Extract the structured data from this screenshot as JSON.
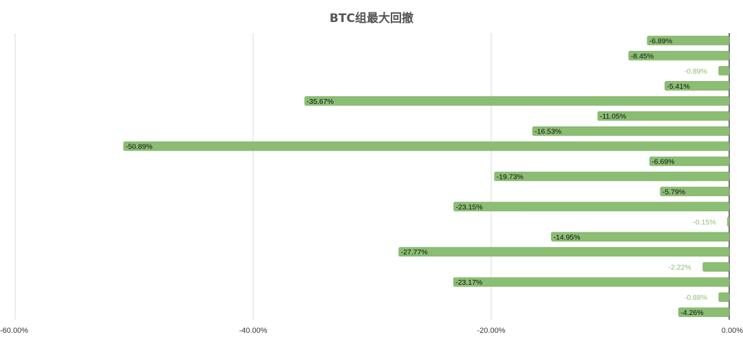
{
  "chart_data": {
    "type": "bar",
    "orientation": "horizontal",
    "title": "BTC组最大回撤",
    "xlabel": "",
    "ylabel": "",
    "xlim": [
      -60,
      0
    ],
    "x_ticks": [
      "-60.00%",
      "-40.00%",
      "-20.00%",
      "0.00%"
    ],
    "x_tick_values": [
      -60,
      -40,
      -20,
      0
    ],
    "grid": "vertical",
    "legend": "none",
    "series": [
      {
        "values": [
          -6.89,
          -8.45,
          -0.89,
          -5.41,
          -35.67,
          -11.05,
          -16.53,
          -50.89,
          -6.69,
          -19.73,
          -5.79,
          -23.15,
          -0.15,
          -14.95,
          -27.77,
          -2.22,
          -23.17,
          -0.88,
          -4.26
        ],
        "labels": [
          "-6.89%",
          "-8.45%",
          "-0.89%",
          "-5.41%",
          "-35.67%",
          "-11.05%",
          "-16.53%",
          "-50.89%",
          "-6.69%",
          "-19.73%",
          "-5.79%",
          "-23.15%",
          "-0.15%",
          "-14.95%",
          "-27.77%",
          "-2.22%",
          "-23.17%",
          "-0.88%",
          "-4.26%"
        ]
      }
    ],
    "colors": {
      "bar": "#8bbd73",
      "bar_stroke": "#78ad60",
      "outside_label": "#8bbd73",
      "inside_label": "#111111",
      "grid": "#d9d9d9",
      "axis": "#444444",
      "tick_text": "#333333"
    }
  }
}
